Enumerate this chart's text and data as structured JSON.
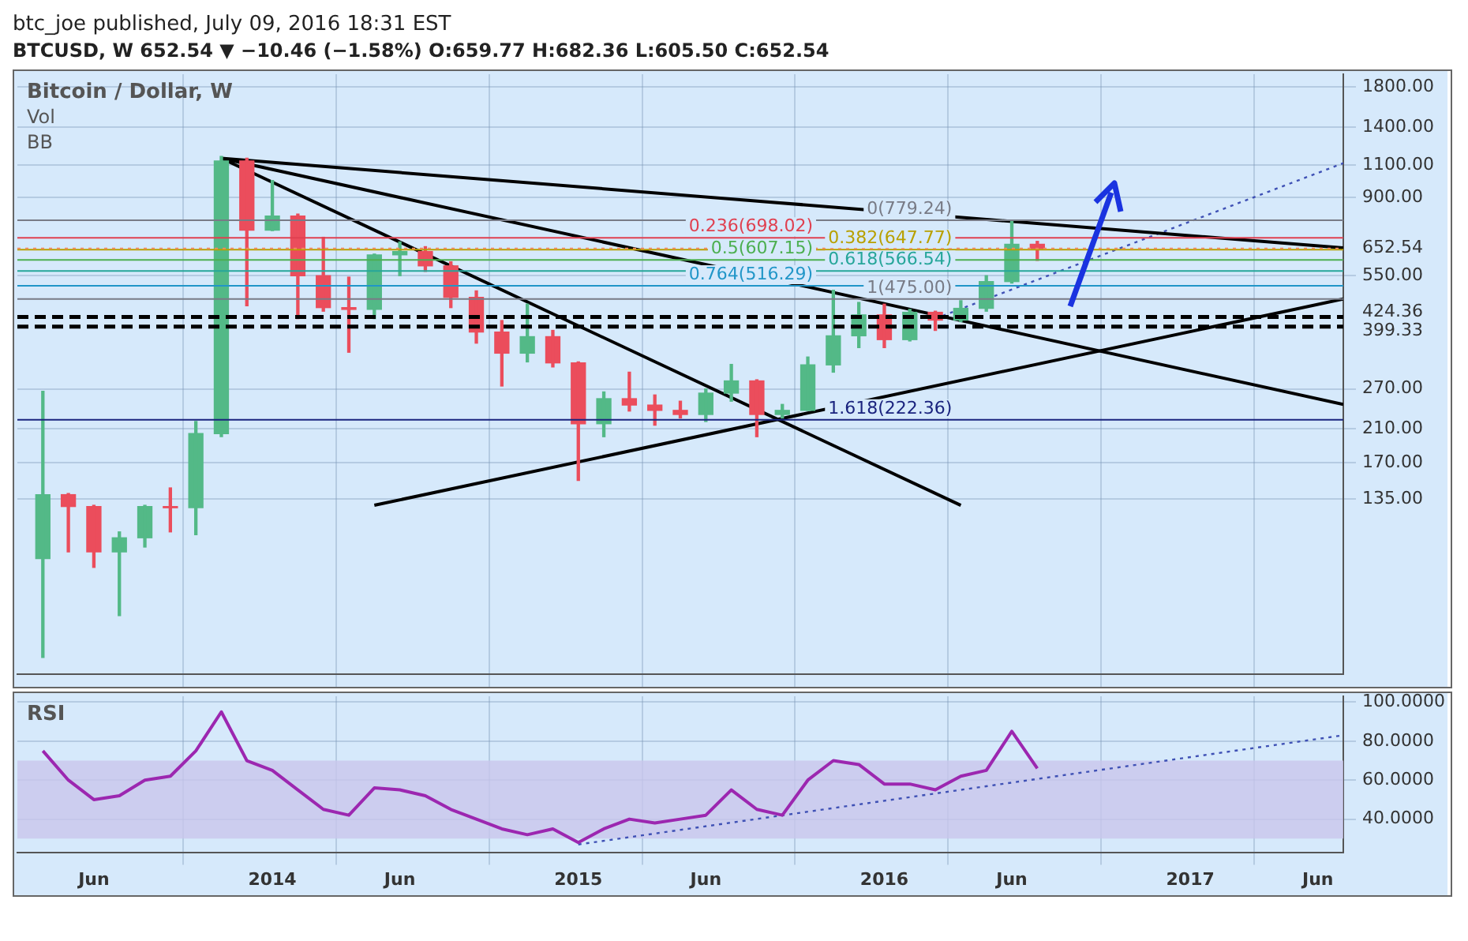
{
  "chart_data": [
    {
      "type": "candlestick",
      "title": "Bitcoin / Dollar, W",
      "subtitle": "BTCUSD, W  652.54 ▼ −10.46 (−1.58%) O:659.77 H:682.36 L:605.50 C:652.54",
      "annotations": [
        "btc_joe published, July 09, 2016 18:31 EST",
        "Vol",
        "BB"
      ],
      "x": [
        "2013-04",
        "2013-05",
        "2013-06",
        "2013-07",
        "2013-08",
        "2013-09",
        "2013-10",
        "2013-11",
        "2013-12",
        "2014-01",
        "2014-02",
        "2014-03",
        "2014-04",
        "2014-05",
        "2014-06",
        "2014-07",
        "2014-08",
        "2014-09",
        "2014-10",
        "2014-11",
        "2014-12",
        "2015-01",
        "2015-02",
        "2015-03",
        "2015-04",
        "2015-05",
        "2015-06",
        "2015-07",
        "2015-08",
        "2015-09",
        "2015-10",
        "2015-11",
        "2015-12",
        "2016-01",
        "2016-02",
        "2016-03",
        "2016-04",
        "2016-05",
        "2016-06",
        "2016-07"
      ],
      "ohlc": [
        [
          93,
          266,
          50,
          139
        ],
        [
          139,
          140,
          97,
          129
        ],
        [
          129,
          130,
          88,
          97
        ],
        [
          97,
          110,
          65,
          106
        ],
        [
          106,
          130,
          100,
          129
        ],
        [
          129,
          145,
          110,
          128
        ],
        [
          128,
          220,
          108,
          204
        ],
        [
          204,
          1163,
          200,
          1130
        ],
        [
          1130,
          1150,
          455,
          732
        ],
        [
          732,
          1000,
          730,
          800
        ],
        [
          800,
          810,
          420,
          550
        ],
        [
          550,
          700,
          440,
          450
        ],
        [
          450,
          545,
          340,
          445
        ],
        [
          445,
          630,
          420,
          627
        ],
        [
          627,
          680,
          550,
          640
        ],
        [
          640,
          660,
          565,
          585
        ],
        [
          585,
          600,
          450,
          480
        ],
        [
          480,
          500,
          360,
          386
        ],
        [
          386,
          415,
          275,
          338
        ],
        [
          338,
          460,
          320,
          375
        ],
        [
          375,
          390,
          310,
          318
        ],
        [
          318,
          320,
          152,
          217
        ],
        [
          217,
          265,
          200,
          254
        ],
        [
          254,
          300,
          235,
          244
        ],
        [
          244,
          260,
          215,
          236
        ],
        [
          236,
          250,
          225,
          230
        ],
        [
          230,
          270,
          220,
          263
        ],
        [
          263,
          315,
          250,
          284
        ],
        [
          284,
          286,
          200,
          230
        ],
        [
          230,
          245,
          225,
          236
        ],
        [
          236,
          330,
          236,
          314
        ],
        [
          314,
          502,
          300,
          377
        ],
        [
          377,
          465,
          350,
          430
        ],
        [
          430,
          460,
          350,
          368
        ],
        [
          368,
          445,
          365,
          437
        ],
        [
          437,
          440,
          390,
          416
        ],
        [
          416,
          470,
          412,
          448
        ],
        [
          448,
          550,
          440,
          530
        ],
        [
          530,
          779,
          525,
          670
        ],
        [
          670,
          682.36,
          605.5,
          652.54
        ]
      ],
      "series": [
        {
          "type": "line",
          "color": "#000000",
          "x": [
            "2013-11",
            "2017-07"
          ],
          "values": [
            1150,
            655
          ]
        },
        {
          "type": "line",
          "color": "#000000",
          "x": [
            "2013-11",
            "2017-07"
          ],
          "values": [
            1150,
            245
          ]
        },
        {
          "type": "line",
          "color": "#000000",
          "x": [
            "2013-11",
            "2016-04"
          ],
          "values": [
            1150,
            130
          ]
        },
        {
          "type": "line",
          "color": "#000000",
          "x": [
            "2014-05",
            "2017-07"
          ],
          "values": [
            130,
            475
          ]
        },
        {
          "type": "line",
          "color": "#3f51b5",
          "line_style": "dotted",
          "x": [
            "2016-03",
            "2017-07"
          ],
          "values": [
            420,
            1115
          ]
        }
      ],
      "ref_lines": [
        {
          "axis": "y",
          "value": 779.24,
          "label": "0(779.24)",
          "color": "#787b86"
        },
        {
          "axis": "y",
          "value": 698.02,
          "label": "0.236(698.02)",
          "color": "#e04050"
        },
        {
          "axis": "y",
          "value": 647.77,
          "label": "0.382(647.77)",
          "color": "#b8a000"
        },
        {
          "axis": "y",
          "value": 607.15,
          "label": "0.5(607.15)",
          "color": "#4caf50"
        },
        {
          "axis": "y",
          "value": 566.54,
          "label": "0.618(566.54)",
          "color": "#26a69a"
        },
        {
          "axis": "y",
          "value": 516.29,
          "label": "0.764(516.29)",
          "color": "#2196c8"
        },
        {
          "axis": "y",
          "value": 475,
          "label": "1(475.00)",
          "color": "#787b86"
        },
        {
          "axis": "y",
          "value": 222.36,
          "label": "1.618(222.36)",
          "color": "#1a237e"
        },
        {
          "axis": "y",
          "value": 652.54,
          "color": "#f08a5d",
          "line_style": "dotted"
        },
        {
          "axis": "y",
          "value": 424.36,
          "color": "#000000",
          "line_style": "dashed"
        },
        {
          "axis": "y",
          "value": 399.33,
          "color": "#000000",
          "line_style": "dashed"
        }
      ],
      "log": "y",
      "ylim": [
        45,
        1950
      ],
      "yticks": [
        {
          "value": 135,
          "label": "135.00"
        },
        {
          "value": 170,
          "label": "170.00"
        },
        {
          "value": 210,
          "label": "210.00"
        },
        {
          "value": 270,
          "label": "270.00"
        },
        {
          "value": 399.33,
          "label": "399.33"
        },
        {
          "value": 424.36,
          "label": "424.36"
        },
        {
          "value": 550,
          "label": "550.00"
        },
        {
          "value": 652.54,
          "label": "652.54"
        },
        {
          "value": 900,
          "label": "900.00"
        },
        {
          "value": 1100,
          "label": "1100.00"
        },
        {
          "value": 1400,
          "label": "1400.00"
        },
        {
          "value": 1800,
          "label": "1800.00"
        }
      ],
      "xlim": [
        "2013-03",
        "2017-07"
      ],
      "xticks": [
        "2013-06",
        "2014-01",
        "2014-06",
        "2015-01",
        "2015-06",
        "2016-01",
        "2016-06",
        "2017-01",
        "2017-06"
      ],
      "tick_labels": "y",
      "grid": true,
      "legend": false
    },
    {
      "type": "line",
      "title": "RSI",
      "x": [
        "2013-04",
        "2013-05",
        "2013-06",
        "2013-07",
        "2013-08",
        "2013-09",
        "2013-10",
        "2013-11",
        "2013-12",
        "2014-01",
        "2014-02",
        "2014-03",
        "2014-04",
        "2014-05",
        "2014-06",
        "2014-07",
        "2014-08",
        "2014-09",
        "2014-10",
        "2014-11",
        "2014-12",
        "2015-01",
        "2015-02",
        "2015-03",
        "2015-04",
        "2015-05",
        "2015-06",
        "2015-07",
        "2015-08",
        "2015-09",
        "2015-10",
        "2015-11",
        "2015-12",
        "2016-01",
        "2016-02",
        "2016-03",
        "2016-04",
        "2016-05",
        "2016-06",
        "2016-07"
      ],
      "series": [
        {
          "color": "#9c27b0",
          "values": [
            75,
            60,
            50,
            52,
            60,
            62,
            75,
            95,
            70,
            65,
            55,
            45,
            42,
            56,
            55,
            52,
            45,
            40,
            35,
            32,
            35,
            28,
            35,
            40,
            38,
            40,
            42,
            55,
            45,
            42,
            60,
            70,
            68,
            58,
            58,
            55,
            62,
            65,
            85,
            66
          ]
        },
        {
          "type": "line",
          "color": "#3f51b5",
          "line_style": "dotted",
          "x": [
            "2015-01",
            "2017-07"
          ],
          "values": [
            27,
            83
          ]
        }
      ],
      "bands": [
        {
          "axis": "y",
          "from": 30,
          "to": 70,
          "color": "#c9c5ec"
        }
      ],
      "ylim": [
        23,
        103
      ],
      "yticks": [
        {
          "value": 40,
          "label": "40.0000"
        },
        {
          "value": 60,
          "label": "60.0000"
        },
        {
          "value": 80,
          "label": "80.0000"
        },
        {
          "value": 100,
          "label": "100.0000"
        }
      ],
      "xlim": [
        "2013-03",
        "2017-07"
      ],
      "xticks": [
        {
          "value": "2013-06",
          "label": "Jun"
        },
        {
          "value": "2014-01",
          "label": "2014"
        },
        {
          "value": "2014-06",
          "label": "Jun"
        },
        {
          "value": "2015-01",
          "label": "2015"
        },
        {
          "value": "2015-06",
          "label": "Jun"
        },
        {
          "value": "2016-01",
          "label": "2016"
        },
        {
          "value": "2016-06",
          "label": "Jun"
        },
        {
          "value": "2017-01",
          "label": "2017"
        },
        {
          "value": "2017-06",
          "label": "Jun"
        }
      ],
      "grid": true,
      "legend": false
    }
  ]
}
